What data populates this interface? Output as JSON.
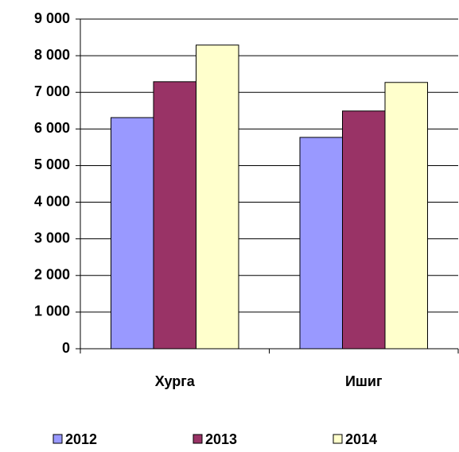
{
  "chart_data": {
    "type": "bar",
    "categories": [
      "Хурга",
      "Ишиг"
    ],
    "series": [
      {
        "name": "2012",
        "color": "#9999ff",
        "values": [
          6310,
          5770
        ]
      },
      {
        "name": "2013",
        "color": "#993366",
        "values": [
          7290,
          6490
        ]
      },
      {
        "name": "2014",
        "color": "#ffffcc",
        "values": [
          8290,
          7270
        ]
      }
    ],
    "ylim": [
      0,
      9000
    ],
    "yticks": [
      0,
      {
        "value": 1000,
        "label": "1 000"
      },
      {
        "value": 2000,
        "label": "2 000"
      },
      {
        "value": 3000,
        "label": "3 000"
      },
      {
        "value": 4000,
        "label": "4 000"
      },
      {
        "value": 5000,
        "label": "5 000"
      },
      {
        "value": 6000,
        "label": "6 000"
      },
      {
        "value": 7000,
        "label": "7 000"
      },
      {
        "value": 8000,
        "label": "8 000"
      },
      {
        "value": 9000,
        "label": "9 000"
      }
    ],
    "grid": true,
    "legend": "bottom"
  }
}
